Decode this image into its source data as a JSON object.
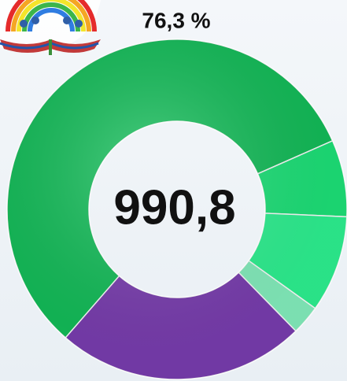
{
  "chart_data": {
    "type": "donut",
    "title": "76,3 %",
    "center_label": "990,8",
    "categories": [
      null,
      null,
      null,
      null,
      null
    ],
    "values": [
      57,
      7.3,
      9.2,
      2.8,
      23.7
    ],
    "colors": [
      "#13c05a",
      "#1de57a",
      "#2ef593",
      "#86f2c0",
      "#7b3eb2"
    ]
  }
}
